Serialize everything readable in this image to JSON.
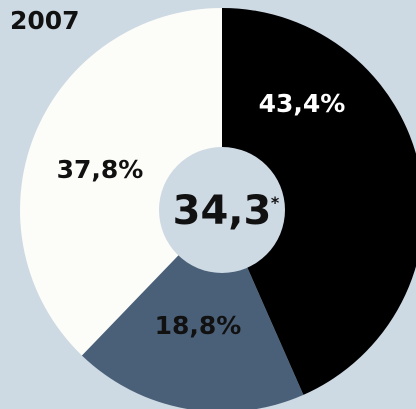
{
  "chart_data": {
    "type": "pie",
    "title": "2007",
    "slices": [
      {
        "label": "43,4%",
        "value": 43.4,
        "color": "#000000",
        "label_color": "#ffffff"
      },
      {
        "label": "18,8%",
        "value": 18.8,
        "color": "#4a6078",
        "label_color": "#111111"
      },
      {
        "label": "37,8%",
        "value": 37.8,
        "color": "#fcfcf8",
        "label_color": "#111111"
      }
    ],
    "center_value": "34,3",
    "center_marker": "*",
    "colors": {
      "background": "#cdd9e3",
      "center": "#cdd9e3",
      "text": "#111111"
    }
  }
}
